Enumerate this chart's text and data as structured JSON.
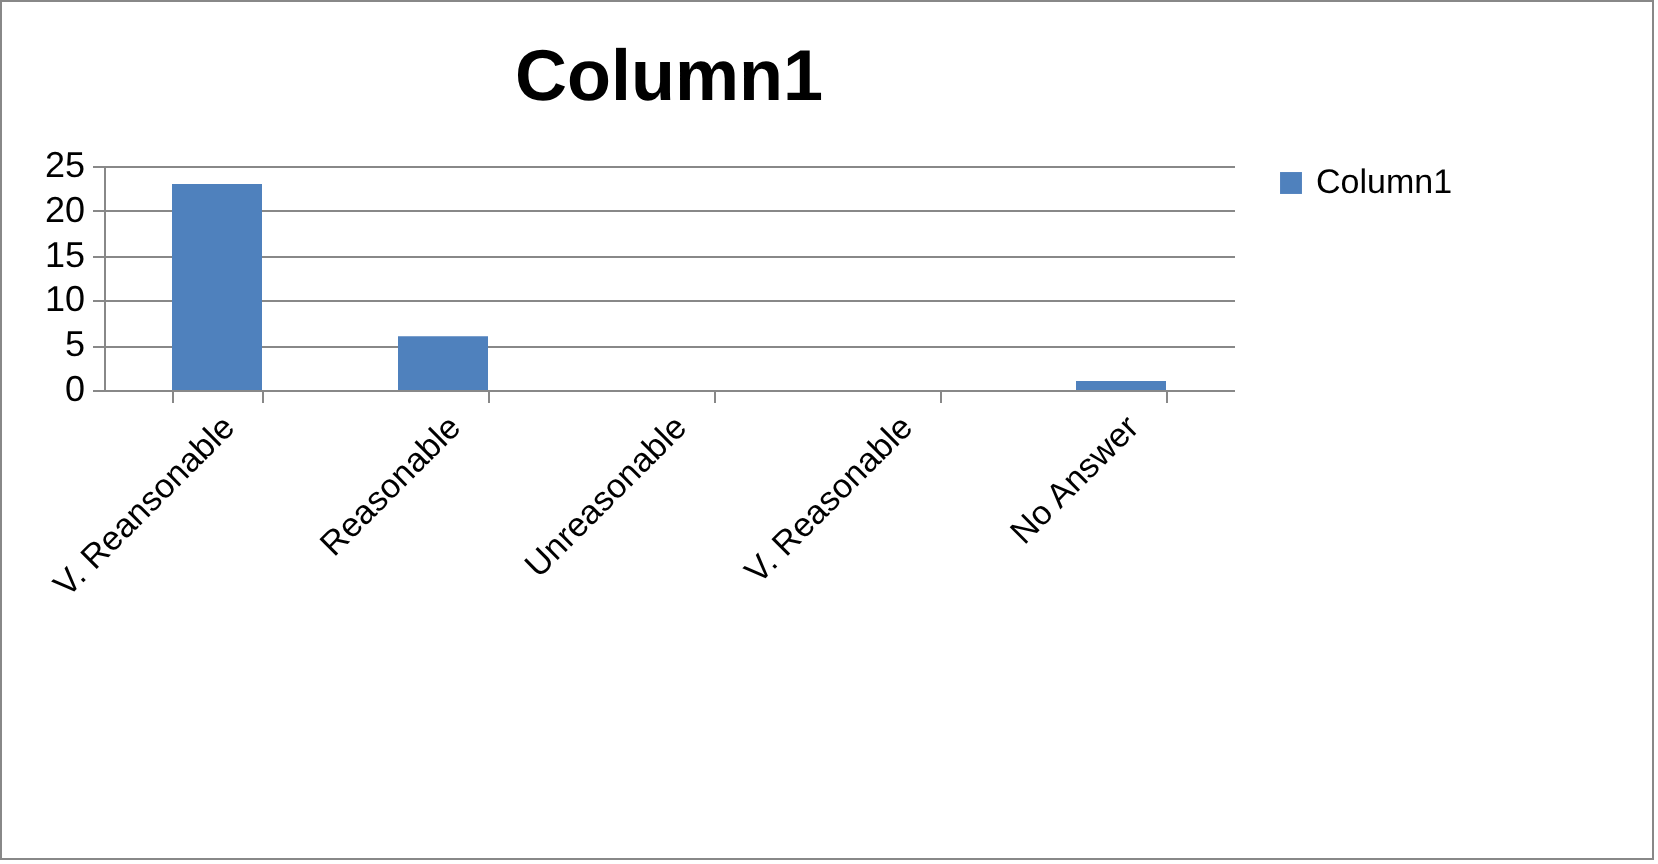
{
  "chart_data": {
    "type": "bar",
    "title": "Column1",
    "categories": [
      "V. Reansonable",
      "Reasonable",
      "Unreasonable",
      "V. Reasonable",
      "No Answer"
    ],
    "series": [
      {
        "name": "Column1",
        "color": "#4f81bd",
        "values": [
          23,
          6,
          0,
          0,
          1
        ]
      }
    ],
    "ylim": [
      0,
      25
    ],
    "yticks": [
      0,
      5,
      10,
      15,
      20,
      25
    ],
    "grid": "y",
    "legend": "right"
  }
}
